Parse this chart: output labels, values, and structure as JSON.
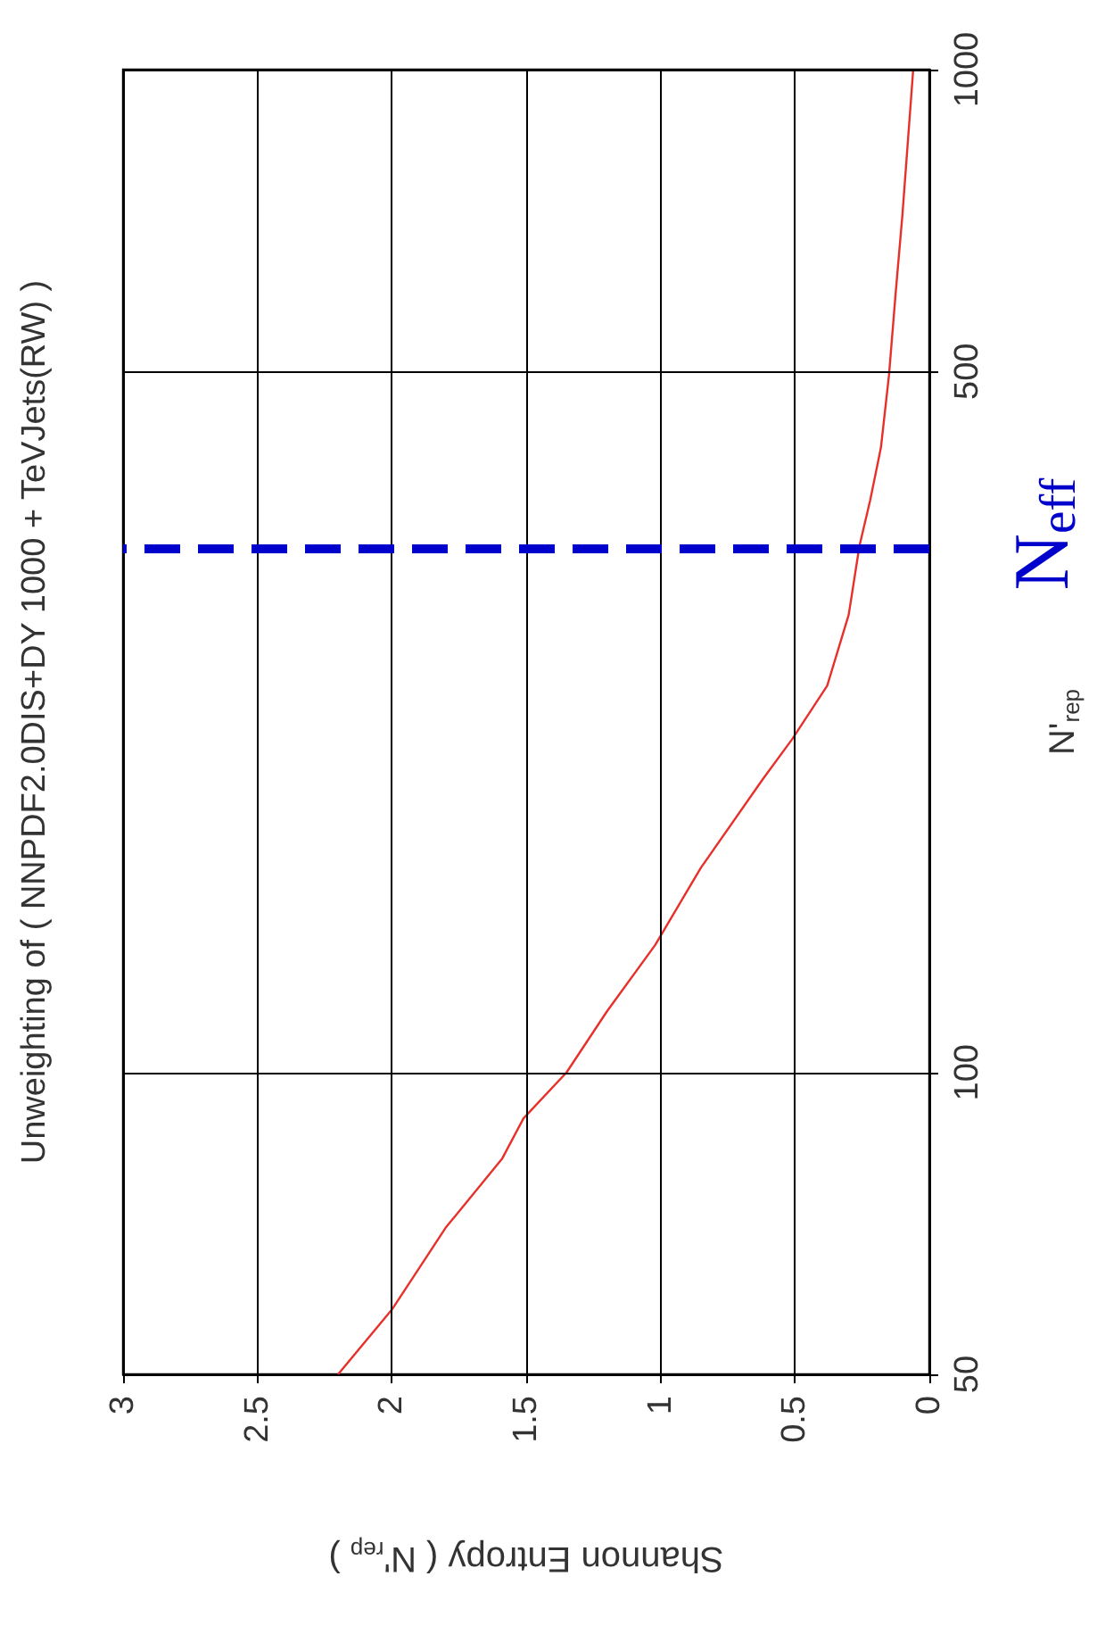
{
  "chart_data": {
    "type": "line",
    "title": "Unweighting of ( NNPDF2.0DIS+DY 1000 + TeVJets(RW) )",
    "xlabel": "Shannon Entropy ( N'$_{rep}$ )",
    "ylabel": "N'$_{rep}$",
    "log": "y",
    "xlim": [
      3,
      0
    ],
    "xticks": [
      0,
      0.5,
      1,
      1.5,
      2,
      2.5,
      3
    ],
    "ylim": [
      50,
      1000
    ],
    "yticks": [
      50,
      100,
      500,
      1000
    ],
    "grid": true,
    "series": [
      {
        "color": "#e8302a",
        "x": [
          2.2,
          2.0,
          1.8,
          1.59,
          1.51,
          1.35,
          1.2,
          1.02,
          0.85,
          0.62,
          0.51,
          0.38,
          0.3,
          0.26,
          0.22,
          0.18,
          0.15,
          0.125,
          0.1,
          0.06
        ],
        "values": [
          50,
          58,
          70,
          82,
          90,
          100,
          115,
          134,
          160,
          196,
          215,
          243,
          286,
          335,
          372,
          420,
          496,
          600,
          717,
          1000
        ]
      }
    ],
    "ref_lines": [
      {
        "axis": "y",
        "value": 333,
        "label": "N$_{eff}$",
        "color": "#0000cc",
        "line_style": "dashed"
      }
    ]
  }
}
